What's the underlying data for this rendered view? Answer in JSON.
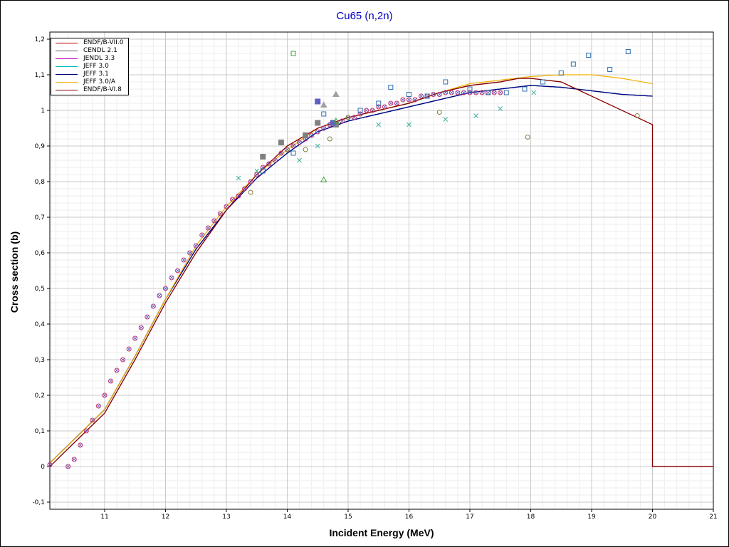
{
  "chart_data": {
    "type": "line",
    "title": "Cu65 (n,2n)",
    "xlabel": "Incident Energy (MeV)",
    "ylabel": "Cross section (b)",
    "xlim": [
      10.1,
      21
    ],
    "ylim": [
      -0.12,
      1.22
    ],
    "x_ticks": [
      "11",
      "12",
      "13",
      "14",
      "15",
      "16",
      "17",
      "18",
      "19",
      "20",
      "21"
    ],
    "x_tick_values": [
      11,
      12,
      13,
      14,
      15,
      16,
      17,
      18,
      19,
      20,
      21
    ],
    "y_ticks": [
      "-0,1",
      "0",
      "0,1",
      "0,2",
      "0,3",
      "0,4",
      "0,5",
      "0,6",
      "0,7",
      "0,8",
      "0,9",
      "1",
      "1,1",
      "1,2"
    ],
    "y_tick_values": [
      -0.1,
      0,
      0.1,
      0.2,
      0.3,
      0.4,
      0.5,
      0.6,
      0.7,
      0.8,
      0.9,
      1.0,
      1.1,
      1.2
    ],
    "grid": true,
    "legend_position": "top-left",
    "series": [
      {
        "name": "ENDF/B-VII.0",
        "color": "#c00000",
        "x": [
          10.1,
          11,
          11.5,
          12,
          12.5,
          13,
          13.5,
          14,
          14.5,
          15,
          15.5,
          16,
          16.5,
          17,
          17.5,
          17.8,
          18,
          18.5,
          19,
          19.5,
          20,
          20,
          21
        ],
        "values": [
          0,
          0.15,
          0.3,
          0.46,
          0.6,
          0.72,
          0.82,
          0.9,
          0.95,
          0.98,
          1.0,
          1.02,
          1.05,
          1.07,
          1.08,
          1.09,
          1.09,
          1.08,
          1.04,
          1.0,
          0.96,
          0,
          0
        ]
      },
      {
        "name": "CENDL 2.1",
        "color": "#606060",
        "x": [
          10.1,
          11,
          11.5,
          12,
          12.5,
          13,
          13.5,
          14,
          14.5,
          15,
          15.5,
          16,
          16.5,
          17,
          17.5,
          18,
          18.5,
          19,
          19.5,
          20
        ],
        "values": [
          0.01,
          0.16,
          0.31,
          0.47,
          0.61,
          0.72,
          0.81,
          0.88,
          0.94,
          0.97,
          0.99,
          1.01,
          1.03,
          1.05,
          1.06,
          1.07,
          1.065,
          1.055,
          1.045,
          1.04
        ]
      },
      {
        "name": "JENDL 3.3",
        "color": "#c000c0",
        "x": [
          10.1,
          11,
          11.5,
          12,
          12.5,
          13,
          13.5,
          14,
          14.5,
          15,
          15.5,
          16,
          16.5,
          17,
          17.5,
          18,
          18.5,
          19,
          19.5,
          20
        ],
        "values": [
          0.01,
          0.16,
          0.31,
          0.47,
          0.61,
          0.72,
          0.81,
          0.88,
          0.94,
          0.97,
          0.99,
          1.01,
          1.03,
          1.05,
          1.06,
          1.07,
          1.065,
          1.055,
          1.045,
          1.04
        ]
      },
      {
        "name": "JEFF 3.0",
        "color": "#00b8b8",
        "x": [
          10.1,
          11,
          11.5,
          12,
          12.5,
          13,
          13.5,
          14,
          14.5,
          15,
          15.5,
          16,
          16.5,
          17,
          17.5,
          18,
          18.5,
          19,
          19.5,
          20
        ],
        "values": [
          0.01,
          0.16,
          0.31,
          0.47,
          0.61,
          0.72,
          0.81,
          0.88,
          0.94,
          0.97,
          0.99,
          1.01,
          1.03,
          1.05,
          1.06,
          1.07,
          1.065,
          1.055,
          1.045,
          1.04
        ]
      },
      {
        "name": "JEFF 3.1",
        "color": "#000080",
        "x": [
          10.1,
          11,
          11.5,
          12,
          12.5,
          13,
          13.5,
          14,
          14.5,
          15,
          15.5,
          16,
          16.5,
          17,
          17.5,
          18,
          18.5,
          19,
          19.5,
          20
        ],
        "values": [
          0.01,
          0.16,
          0.31,
          0.47,
          0.61,
          0.72,
          0.81,
          0.88,
          0.94,
          0.97,
          0.99,
          1.01,
          1.03,
          1.05,
          1.06,
          1.07,
          1.065,
          1.055,
          1.045,
          1.04
        ]
      },
      {
        "name": "JEFF 3.0/A",
        "color": "#f0b000",
        "x": [
          10.1,
          11,
          11.5,
          12,
          12.5,
          13,
          13.5,
          14,
          14.5,
          15,
          15.5,
          16,
          16.5,
          17,
          17.5,
          18,
          18.5,
          19,
          19.5,
          20
        ],
        "values": [
          0.01,
          0.16,
          0.31,
          0.47,
          0.62,
          0.73,
          0.82,
          0.89,
          0.95,
          0.98,
          1.0,
          1.02,
          1.05,
          1.075,
          1.085,
          1.095,
          1.1,
          1.1,
          1.09,
          1.075
        ]
      },
      {
        "name": "ENDF/B-VI.8",
        "color": "#800000",
        "x": [
          10.1,
          11,
          11.5,
          12,
          12.5,
          13,
          13.5,
          14,
          14.5,
          15,
          15.5,
          16,
          16.5,
          17,
          17.5,
          17.8,
          18,
          18.5,
          19,
          19.5,
          20,
          20,
          21
        ],
        "values": [
          0,
          0.15,
          0.3,
          0.46,
          0.6,
          0.72,
          0.82,
          0.9,
          0.95,
          0.98,
          1.0,
          1.02,
          1.05,
          1.07,
          1.08,
          1.09,
          1.09,
          1.08,
          1.04,
          1.0,
          0.96,
          0,
          0
        ]
      }
    ],
    "experimental_points": [
      {
        "marker": "circle-x",
        "color": "#c03070",
        "x": [
          10.1,
          10.4,
          10.5,
          10.6,
          10.7,
          10.8,
          10.9,
          11.0,
          11.1,
          11.2,
          11.3,
          11.4,
          11.5,
          11.6,
          11.7,
          11.8,
          11.9,
          12.0,
          12.1,
          12.2,
          12.3,
          12.4,
          12.5,
          12.6,
          12.7,
          12.8,
          12.9,
          13.0,
          13.1,
          13.2,
          13.3,
          13.4,
          13.5,
          13.6,
          13.7,
          13.8,
          13.9,
          14.0,
          14.1,
          14.2,
          14.3,
          14.4,
          14.5,
          14.6,
          14.7,
          14.8,
          14.9,
          15.0,
          15.1,
          15.2,
          15.3,
          15.4,
          15.5,
          15.6,
          15.7,
          15.8,
          15.9,
          16.0,
          16.1,
          16.2,
          16.3,
          16.4,
          16.5,
          16.6,
          16.7,
          16.8,
          16.9,
          17.0,
          17.1,
          17.2,
          17.3,
          17.4,
          17.5
        ],
        "values": [
          0.005,
          0.0,
          0.02,
          0.06,
          0.1,
          0.13,
          0.17,
          0.2,
          0.24,
          0.27,
          0.3,
          0.33,
          0.36,
          0.39,
          0.42,
          0.45,
          0.48,
          0.5,
          0.53,
          0.55,
          0.58,
          0.6,
          0.62,
          0.65,
          0.67,
          0.69,
          0.71,
          0.73,
          0.75,
          0.76,
          0.78,
          0.8,
          0.82,
          0.84,
          0.85,
          0.86,
          0.88,
          0.89,
          0.9,
          0.91,
          0.92,
          0.93,
          0.94,
          0.95,
          0.96,
          0.96,
          0.97,
          0.98,
          0.98,
          0.99,
          1.0,
          1.0,
          1.01,
          1.01,
          1.02,
          1.02,
          1.03,
          1.03,
          1.03,
          1.04,
          1.04,
          1.045,
          1.045,
          1.05,
          1.05,
          1.05,
          1.05,
          1.05,
          1.05,
          1.05,
          1.05,
          1.05,
          1.05
        ]
      },
      {
        "marker": "square",
        "color": "#3070b0",
        "x": [
          13.6,
          14.1,
          14.6,
          15.2,
          15.5,
          15.7,
          16.0,
          16.3,
          16.6,
          17.0,
          17.3,
          17.6,
          17.9,
          18.2,
          18.5,
          18.7,
          18.95,
          19.3,
          19.6
        ],
        "values": [
          0.83,
          0.88,
          0.99,
          1.0,
          1.02,
          1.065,
          1.045,
          1.04,
          1.08,
          1.06,
          1.05,
          1.05,
          1.06,
          1.08,
          1.105,
          1.13,
          1.155,
          1.115,
          1.165
        ]
      },
      {
        "marker": "x-cross",
        "color": "#40b0a0",
        "x": [
          13.2,
          13.5,
          14.2,
          14.5,
          15.5,
          16.0,
          16.6,
          17.1,
          17.5,
          18.05
        ],
        "values": [
          0.81,
          0.83,
          0.86,
          0.9,
          0.96,
          0.96,
          0.975,
          0.985,
          1.005,
          1.05
        ]
      },
      {
        "marker": "circle",
        "color": "#808040",
        "x": [
          13.4,
          14.0,
          14.3,
          14.7,
          15.0,
          16.5,
          17.95,
          19.75
        ],
        "values": [
          0.77,
          0.89,
          0.89,
          0.92,
          0.98,
          0.995,
          0.925,
          0.985
        ]
      },
      {
        "marker": "filled-square",
        "color": "#808080",
        "x": [
          13.6,
          13.9,
          14.3,
          14.5,
          14.8
        ],
        "values": [
          0.87,
          0.91,
          0.93,
          0.965,
          0.96
        ]
      },
      {
        "marker": "filled-square",
        "color": "#6060c0",
        "x": [
          14.5,
          14.75
        ],
        "values": [
          1.025,
          0.965
        ]
      },
      {
        "marker": "triangle",
        "color": "#40a040",
        "x": [
          14.6,
          14.8
        ],
        "values": [
          0.805,
          0.97
        ]
      },
      {
        "marker": "filled-triangle",
        "color": "#a0a0a0",
        "x": [
          14.6,
          14.8
        ],
        "values": [
          1.015,
          1.045
        ]
      },
      {
        "marker": "square",
        "color": "#40a040",
        "x": [
          14.1
        ],
        "values": [
          1.16
        ]
      }
    ]
  }
}
